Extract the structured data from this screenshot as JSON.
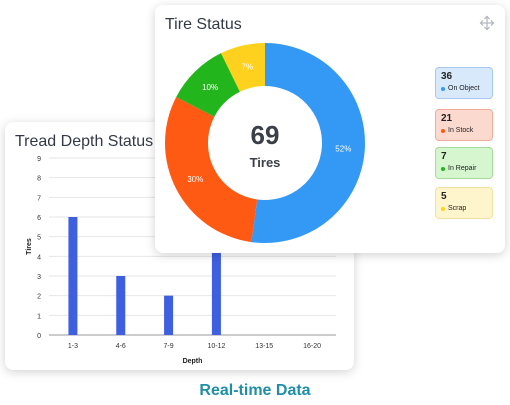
{
  "tread_status": {
    "title": "Tread Depth Status",
    "chart_data": {
      "type": "bar",
      "title": "Tread Depth Status",
      "xlabel": "Depth",
      "ylabel": "Tires",
      "categories": [
        "1-3",
        "4-6",
        "7-9",
        "10-12",
        "13-15",
        "16-20"
      ],
      "values": [
        6,
        3,
        2,
        4.2,
        0,
        0
      ],
      "ylim": [
        0,
        9
      ],
      "yticks": [
        "0",
        "1",
        "2",
        "3",
        "4",
        "5",
        "6",
        "7",
        "8",
        "9"
      ],
      "grid": true,
      "color": "#3d5fe0"
    }
  },
  "tire_status": {
    "title": "Tire Status",
    "total": "69",
    "total_label": "Tires",
    "chart_data": {
      "type": "pie",
      "categories": [
        "On Object",
        "In Stock",
        "In Repair",
        "Scrap"
      ],
      "values": [
        36,
        21,
        7,
        5
      ],
      "percent_labels": [
        "52%",
        "30%",
        "10%",
        "7%"
      ],
      "colors": [
        "#3399f5",
        "#ff5a14",
        "#22b51c",
        "#ffd11f"
      ]
    },
    "legend": [
      {
        "count": "36",
        "label": "On Object",
        "dot": "#3399f5",
        "bg": "#d8e9fb",
        "border": "#a6c9ef"
      },
      {
        "count": "21",
        "label": "In Stock",
        "dot": "#ff5a14",
        "bg": "#fbd9cf",
        "border": "#f0ad9b"
      },
      {
        "count": "7",
        "label": "In Repair",
        "dot": "#22b51c",
        "bg": "#d6f6cf",
        "border": "#a5dc9b"
      },
      {
        "count": "5",
        "label": "Scrap",
        "dot": "#ffd11f",
        "bg": "#fff5cc",
        "border": "#f0e0a0"
      }
    ],
    "move_icon": "move-arrows-icon"
  },
  "footer": {
    "text": "Real-time Data"
  }
}
